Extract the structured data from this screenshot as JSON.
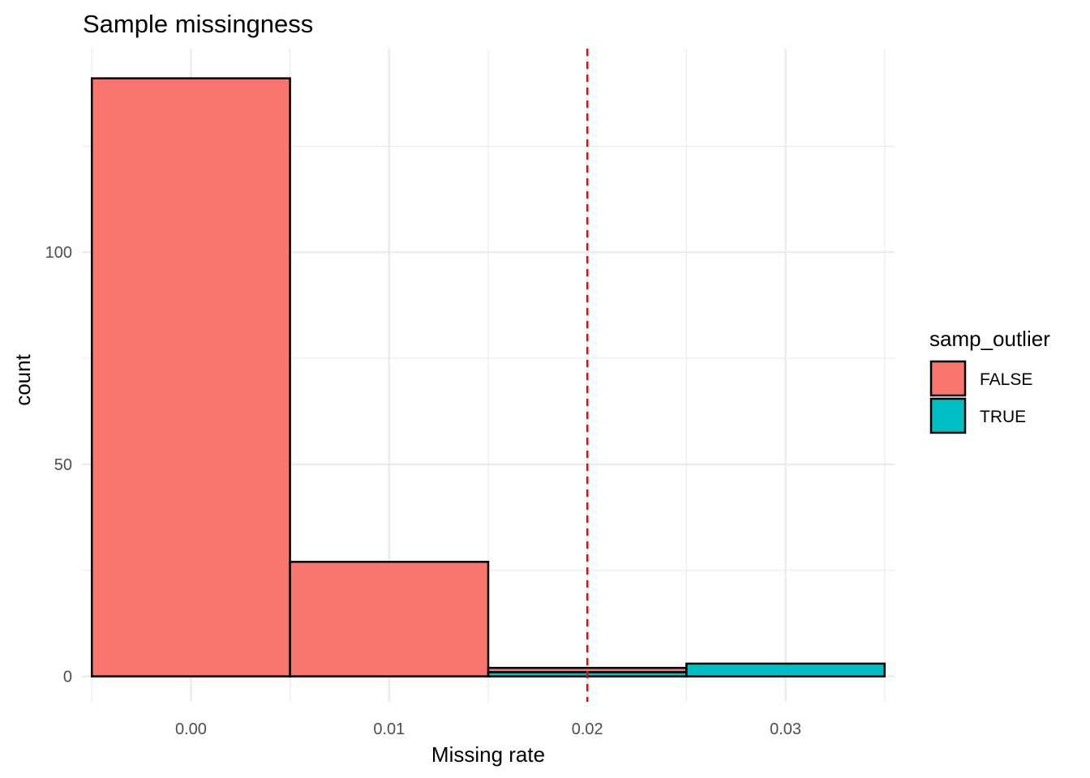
{
  "chart_data": {
    "type": "bar",
    "title": "Sample missingness",
    "xlabel": "Missing rate",
    "ylabel": "count",
    "xlim": [
      -0.0055,
      0.0355
    ],
    "ylim": [
      -6,
      148
    ],
    "x_ticks": [
      0.0,
      0.01,
      0.02,
      0.03
    ],
    "x_tick_labels": [
      "0.00",
      "0.01",
      "0.02",
      "0.03"
    ],
    "y_ticks": [
      0,
      50,
      100
    ],
    "y_tick_labels": [
      "0",
      "50",
      "100"
    ],
    "y_minor_ticks": [
      25,
      75,
      125
    ],
    "grid": true,
    "bin_width": 0.01,
    "stacked": true,
    "categories": [
      "0.00",
      "0.01",
      "0.02",
      "0.03"
    ],
    "series": [
      {
        "name": "FALSE",
        "values": [
          141,
          27,
          1,
          0
        ]
      },
      {
        "name": "TRUE",
        "values": [
          0,
          0,
          1,
          3
        ]
      }
    ],
    "threshold": 0.02,
    "legend": {
      "title": "samp_outlier",
      "position": "right",
      "entries": [
        "FALSE",
        "TRUE"
      ]
    }
  },
  "colors": {
    "FALSE": "#F8766D",
    "TRUE": "#00BFC4",
    "bar_outline": "#000000",
    "threshold": "#FF0000",
    "grid": "#EBEBEB"
  }
}
